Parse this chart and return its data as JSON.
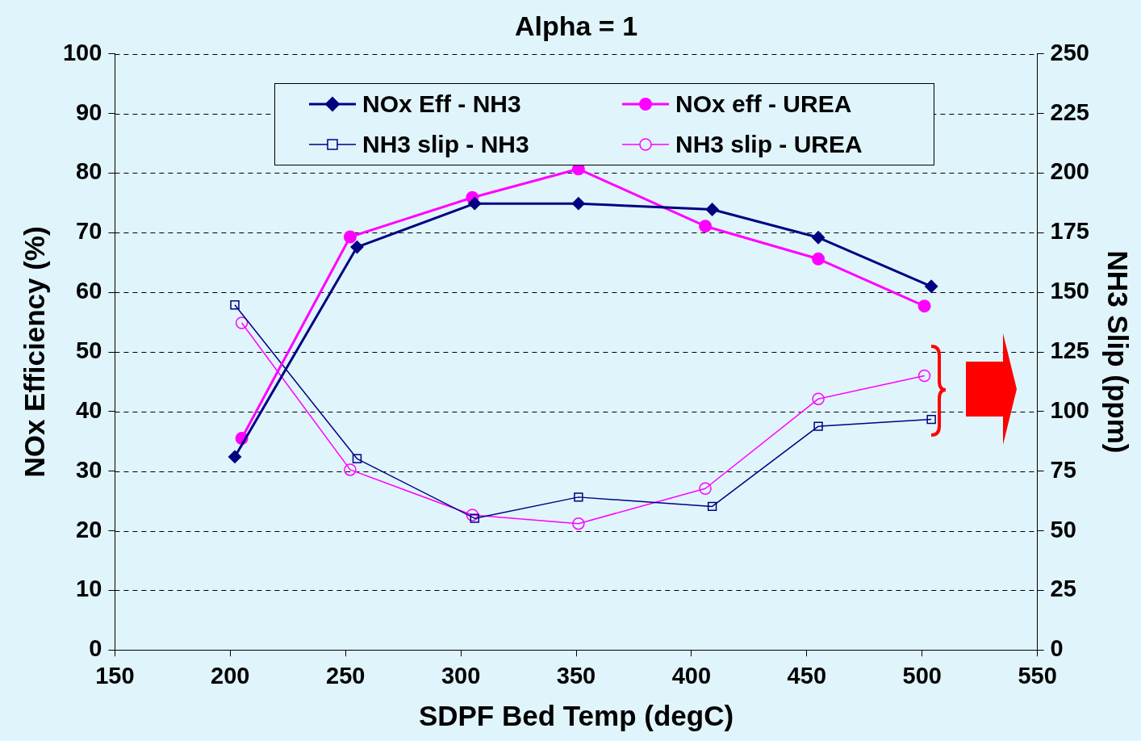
{
  "chart_data": {
    "type": "line",
    "title": "Alpha = 1",
    "xlabel": "SDPF Bed Temp (degC)",
    "ylabel": "NOx Efficiency (%)",
    "y2label": "NH3 Slip (ppm)",
    "xlim": [
      150,
      550
    ],
    "xticks": [
      150,
      200,
      250,
      300,
      350,
      400,
      450,
      500,
      550
    ],
    "ylim": [
      0,
      100
    ],
    "yticks": [
      0,
      10,
      20,
      30,
      40,
      50,
      60,
      70,
      80,
      90,
      100
    ],
    "y2lim": [
      0,
      250
    ],
    "y2ticks": [
      0,
      25,
      50,
      75,
      100,
      125,
      150,
      175,
      200,
      225,
      250
    ],
    "grid": "y",
    "legend": "top",
    "line_style": "solid",
    "series": [
      {
        "name": "NOx Eff - NH3",
        "color": "#000080",
        "marker": "diamond",
        "x": [
          202,
          255,
          306,
          351,
          409,
          455,
          504
        ],
        "values": [
          32.4,
          67.6,
          74.9,
          74.9,
          73.9,
          69.2,
          61.0
        ]
      },
      {
        "name": "NOx eff - UREA",
        "color": "#ff00ff",
        "marker": "circle",
        "x": [
          205,
          252,
          305,
          351,
          406,
          455,
          501
        ],
        "values": [
          35.5,
          69.3,
          75.9,
          80.7,
          71.1,
          65.6,
          57.7
        ]
      },
      {
        "name": "NH3 slip - NH3",
        "color": "#000080",
        "marker": "square",
        "axis": "y2",
        "x": [
          202,
          255,
          306,
          351,
          409,
          455,
          504
        ],
        "values": [
          144.7,
          80.2,
          55.2,
          64.1,
          60.2,
          93.8,
          96.7
        ]
      },
      {
        "name": "NH3 slip - UREA",
        "color": "#ff00ff",
        "marker": "circle",
        "axis": "y2",
        "x": [
          205,
          252,
          305,
          351,
          406,
          455,
          501
        ],
        "values": [
          137.2,
          75.6,
          56.6,
          53.0,
          67.7,
          105.3,
          115.0
        ]
      }
    ]
  }
}
